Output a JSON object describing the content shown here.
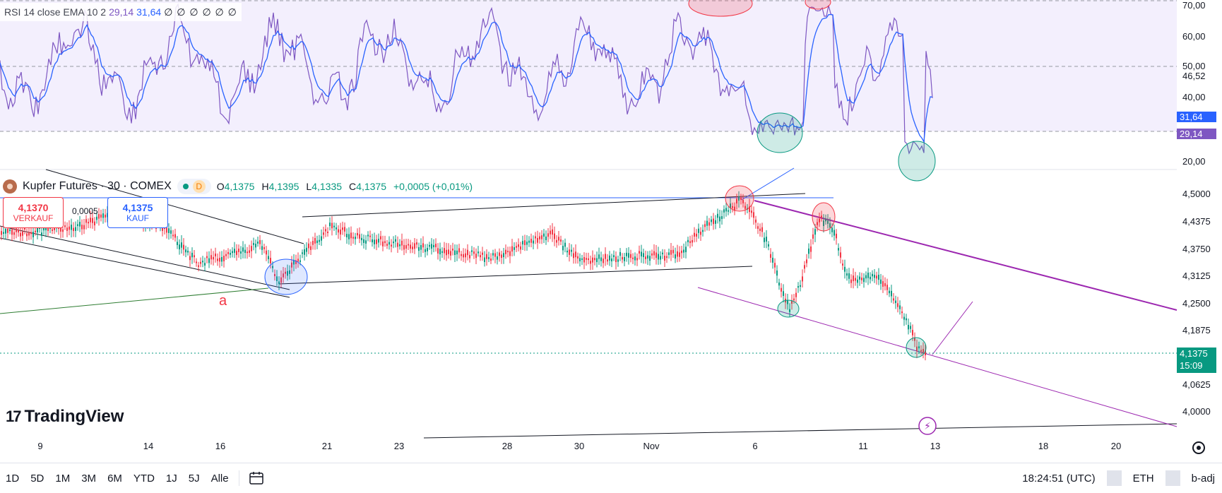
{
  "rsi_pane": {
    "legend_name": "RSI",
    "legend_params": "14 close EMA 10 2",
    "rsi_value": "29,14",
    "ema_value": "31,64",
    "null_values": "∅ ∅ ∅ ∅ ∅ ∅",
    "scale_labels": [
      "70,00",
      "60,00",
      "50,00",
      "46,52",
      "40,00",
      "20,00"
    ],
    "tag_ema": "31,64",
    "tag_rsi": "29,14",
    "colors": {
      "rsi": "#7e57c2",
      "ema": "#2962ff",
      "background": "#f3effd"
    }
  },
  "main_pane": {
    "symbol": "Kupfer Futures · 30 · COMEX",
    "d_badge": "D",
    "ohlc": {
      "o_label": "O",
      "o_value": "4,1375",
      "h_label": "H",
      "h_value": "4,1395",
      "l_label": "L",
      "l_value": "4,1335",
      "c_label": "C",
      "c_value": "4,1375",
      "change": "+0,0005 (+0,01%)"
    },
    "sell": {
      "price": "4,1370",
      "label": "VERKAUF"
    },
    "buy": {
      "price": "4,1375",
      "label": "KAUF"
    },
    "spread": "0,0005",
    "scale_labels": [
      "4,5000",
      "4,4375",
      "4,3750",
      "4,3125",
      "4,2500",
      "4,1875",
      "4,0625",
      "4,0000"
    ],
    "last_price": "4,1375",
    "countdown": "15:09",
    "annotation_a": "a",
    "colors": {
      "up": "#089981",
      "down": "#f23645",
      "accent": "#2962ff",
      "channel": "#9c27b0"
    }
  },
  "logo": {
    "mark": "17",
    "name": "TradingView"
  },
  "time_axis": [
    "9",
    "14",
    "16",
    "21",
    "23",
    "28",
    "30",
    "Nov",
    "6",
    "11",
    "13",
    "18",
    "20"
  ],
  "bottom_bar": {
    "ranges": [
      "1D",
      "5D",
      "1M",
      "3M",
      "6M",
      "YTD",
      "1J",
      "5J",
      "Alle"
    ],
    "calendar_icon": "calendar-icon",
    "clock": "18:24:51 (UTC)",
    "session": "ETH",
    "adjust": "b-adj"
  }
}
